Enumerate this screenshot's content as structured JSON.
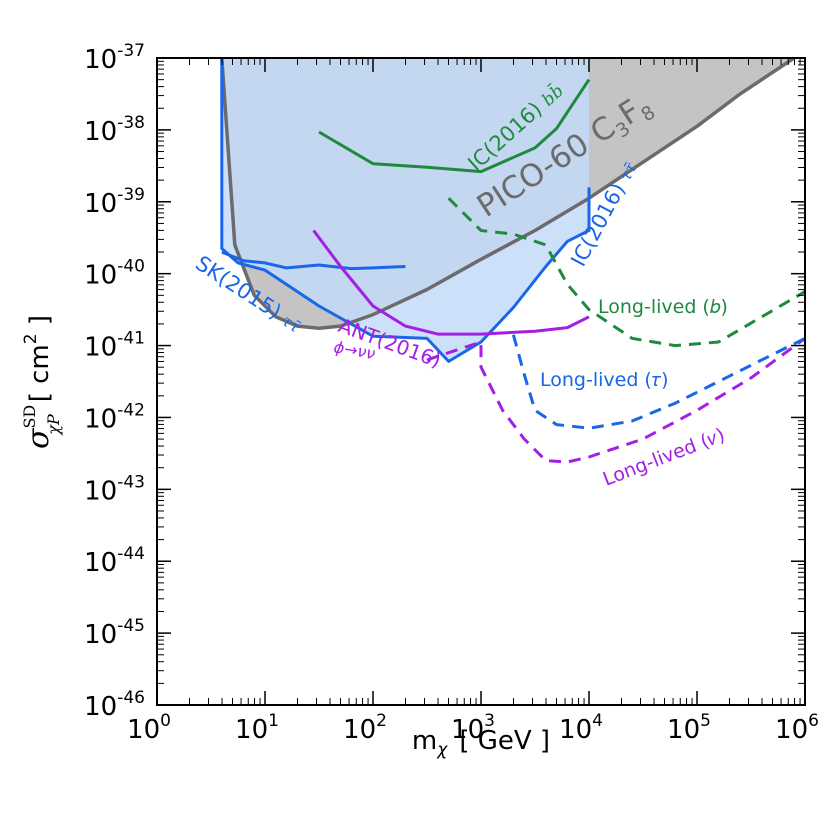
{
  "chart_data": {
    "type": "line",
    "title": "",
    "xlabel": {
      "main": "m",
      "sub": "χ",
      "unit": "[ GeV ]"
    },
    "ylabel": {
      "sigma": "σ",
      "sup": "SD",
      "sub": "χP",
      "unit": "[ cm",
      "unit_exp": "2",
      "unit_close": " ]"
    },
    "x_scale": "log",
    "y_scale": "log",
    "xlim_exp": [
      0,
      6
    ],
    "ylim_exp": [
      -46,
      -37
    ],
    "x_ticks": [
      {
        "base": "10",
        "exp": "0",
        "v": 0
      },
      {
        "base": "10",
        "exp": "1",
        "v": 1
      },
      {
        "base": "10",
        "exp": "2",
        "v": 2
      },
      {
        "base": "10",
        "exp": "3",
        "v": 3
      },
      {
        "base": "10",
        "exp": "4",
        "v": 4
      },
      {
        "base": "10",
        "exp": "5",
        "v": 5
      },
      {
        "base": "10",
        "exp": "6",
        "v": 6
      }
    ],
    "y_ticks": [
      {
        "base": "10",
        "exp": "-37",
        "v": -37
      },
      {
        "base": "10",
        "exp": "-38",
        "v": -38
      },
      {
        "base": "10",
        "exp": "-39",
        "v": -39
      },
      {
        "base": "10",
        "exp": "-40",
        "v": -40
      },
      {
        "base": "10",
        "exp": "-41",
        "v": -41
      },
      {
        "base": "10",
        "exp": "-42",
        "v": -42
      },
      {
        "base": "10",
        "exp": "-43",
        "v": -43
      },
      {
        "base": "10",
        "exp": "-44",
        "v": -44
      },
      {
        "base": "10",
        "exp": "-45",
        "v": -45
      },
      {
        "base": "10",
        "exp": "-46",
        "v": -46
      }
    ],
    "colors": {
      "pico_fill": "#c4c4c4",
      "pico_line": "#6b6b6b",
      "ic_bb": "#1f8a3e",
      "ic_tau": "#1a66e8",
      "ic_tau_fill": "#c4daf8",
      "ant": "#a31fe6"
    },
    "series": [
      {
        "name": "PICO-60 C3F8",
        "style": "solid-filled",
        "color_key": "pico_line",
        "fill_key": "pico_fill",
        "points": [
          [
            0.6,
            -37.0
          ],
          [
            0.6,
            -37
          ],
          [
            0.72,
            -39.6
          ],
          [
            0.9,
            -40.3
          ],
          [
            1.1,
            -40.6
          ],
          [
            1.3,
            -40.73
          ],
          [
            1.5,
            -40.76
          ],
          [
            1.7,
            -40.73
          ],
          [
            2.0,
            -40.57
          ],
          [
            2.5,
            -40.22
          ],
          [
            3.0,
            -39.8
          ],
          [
            3.5,
            -39.4
          ],
          [
            4.0,
            -38.95
          ],
          [
            4.5,
            -38.45
          ],
          [
            5.0,
            -37.95
          ],
          [
            5.4,
            -37.5
          ],
          [
            5.9,
            -37.0
          ]
        ]
      },
      {
        "name": "IC(2016) τ τ̄",
        "style": "solid-filled",
        "color_key": "ic_tau",
        "fill_key": "ic_tau_fill",
        "points": [
          [
            0.6,
            -37.0
          ],
          [
            0.6,
            -39.65
          ],
          [
            0.75,
            -39.85
          ],
          [
            1.0,
            -39.95
          ],
          [
            1.5,
            -40.45
          ],
          [
            2.0,
            -40.87
          ],
          [
            2.5,
            -40.9
          ],
          [
            2.7,
            -41.22
          ],
          [
            3.0,
            -40.95
          ],
          [
            3.3,
            -40.47
          ],
          [
            3.6,
            -39.9
          ],
          [
            3.8,
            -39.55
          ],
          [
            4.0,
            -39.4
          ],
          [
            4.0,
            -38.8
          ]
        ]
      },
      {
        "name": "SK(2015) τ τ̄",
        "style": "solid",
        "color_key": "ic_tau",
        "points": [
          [
            0.6,
            -39.7
          ],
          [
            0.8,
            -39.82
          ],
          [
            1.0,
            -39.85
          ],
          [
            1.2,
            -39.92
          ],
          [
            1.5,
            -39.88
          ],
          [
            1.8,
            -39.93
          ],
          [
            2.0,
            -39.92
          ],
          [
            2.3,
            -39.9
          ]
        ]
      },
      {
        "name": "IC(2016) b b̄",
        "style": "solid",
        "color_key": "ic_bb",
        "points": [
          [
            1.5,
            -38.03
          ],
          [
            2.0,
            -38.47
          ],
          [
            2.5,
            -38.52
          ],
          [
            3.0,
            -38.58
          ],
          [
            3.5,
            -38.25
          ],
          [
            3.7,
            -37.98
          ],
          [
            4.0,
            -37.3
          ]
        ]
      },
      {
        "name": "ANT(2016) ϕ→νν (solid)",
        "style": "solid",
        "color_key": "ant",
        "points": [
          [
            1.45,
            -39.4
          ],
          [
            1.7,
            -39.9
          ],
          [
            2.0,
            -40.45
          ],
          [
            2.3,
            -40.73
          ],
          [
            2.6,
            -40.84
          ],
          [
            3.0,
            -40.84
          ],
          [
            3.5,
            -40.8
          ],
          [
            3.8,
            -40.75
          ],
          [
            4.0,
            -40.6
          ]
        ]
      },
      {
        "name": "ANT(2016) ϕ→νν (dashed)",
        "style": "dashed",
        "color_key": "ant",
        "points": [
          [
            2.5,
            -41.2
          ],
          [
            2.8,
            -41.05
          ],
          [
            3.0,
            -40.95
          ],
          [
            3.0,
            -41.3
          ],
          [
            3.2,
            -41.9
          ],
          [
            3.4,
            -42.3
          ],
          [
            3.6,
            -42.6
          ],
          [
            3.8,
            -42.62
          ],
          [
            4.0,
            -42.55
          ],
          [
            4.5,
            -42.3
          ],
          [
            5.0,
            -41.9
          ],
          [
            5.5,
            -41.45
          ],
          [
            6.0,
            -40.9
          ]
        ]
      },
      {
        "name": "Long-lived (b)",
        "style": "dashed",
        "color_key": "ic_bb",
        "points": [
          [
            2.7,
            -38.95
          ],
          [
            3.0,
            -39.4
          ],
          [
            3.3,
            -39.45
          ],
          [
            3.6,
            -39.6
          ],
          [
            3.8,
            -40.15
          ],
          [
            4.0,
            -40.5
          ],
          [
            4.4,
            -40.9
          ],
          [
            4.8,
            -41.0
          ],
          [
            5.2,
            -40.95
          ],
          [
            5.6,
            -40.6
          ],
          [
            6.0,
            -40.25
          ]
        ]
      },
      {
        "name": "Long-lived (τ)",
        "style": "dashed",
        "color_key": "ic_tau",
        "points": [
          [
            3.3,
            -40.85
          ],
          [
            3.4,
            -41.4
          ],
          [
            3.5,
            -41.9
          ],
          [
            3.7,
            -42.1
          ],
          [
            4.0,
            -42.15
          ],
          [
            4.4,
            -42.05
          ],
          [
            4.8,
            -41.8
          ],
          [
            5.2,
            -41.5
          ],
          [
            5.6,
            -41.2
          ],
          [
            6.0,
            -40.9
          ]
        ]
      }
    ],
    "annotations": {
      "pico_label": {
        "main": "PICO-60 C",
        "sub1": "3",
        "mid": "F",
        "sub2": "8"
      },
      "ic_bb_label": {
        "main": "IC(2016) ",
        "italic": "bb̄"
      },
      "ic_tau_label": {
        "main": "IC(2016) ",
        "italic": "ττ̄"
      },
      "sk_label": {
        "main": "SK(2015) ",
        "italic": "ττ̄"
      },
      "ant_label": "ANT(2016)",
      "ant_sub": "ϕ→νν",
      "ll_b": "Long-lived (𝑏)",
      "ll_tau": "Long-lived (𝜏)",
      "ll_nu": "Long-lived (𝜈)"
    }
  }
}
